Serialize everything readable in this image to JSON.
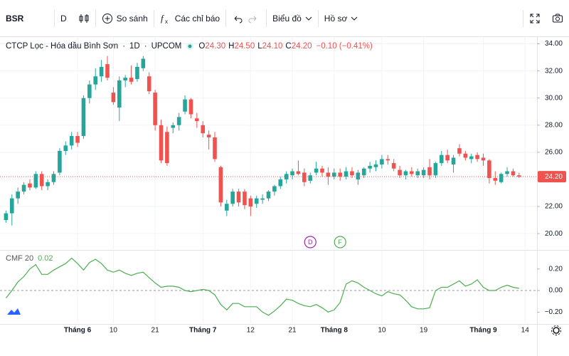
{
  "toolbar": {
    "symbol": "BSR",
    "interval": "D",
    "compare": "So sánh",
    "indicators": "Các chỉ báo",
    "chart": "Biểu đồ",
    "profile": "Hồ sơ"
  },
  "chart_data": [
    {
      "type": "candlestick",
      "title": "CTCP Lọc - Hóa dầu Bình Sơn",
      "interval": "1D",
      "exchange": "UPCOM",
      "legend_values": [
        {
          "key": "O",
          "value": "24.30"
        },
        {
          "key": "H",
          "value": "24.50"
        },
        {
          "key": "L",
          "value": "24.10"
        },
        {
          "key": "C",
          "value": "24.20"
        }
      ],
      "change": "−0.10 (−0.41%)",
      "series": [
        {
          "up_color": "#26a69a",
          "down_color": "#ef5350",
          "ohlc": [
            [
              21.0,
              21.7,
              20.8,
              21.5
            ],
            [
              21.5,
              22.9,
              20.6,
              22.6
            ],
            [
              22.6,
              23.4,
              22.2,
              23.1
            ],
            [
              23.1,
              23.8,
              22.9,
              23.6
            ],
            [
              23.7,
              24.0,
              23.2,
              23.4
            ],
            [
              23.4,
              24.6,
              23.3,
              24.4
            ],
            [
              24.4,
              24.6,
              23.2,
              23.5
            ],
            [
              23.5,
              24.0,
              23.2,
              23.8
            ],
            [
              23.8,
              24.6,
              23.6,
              24.4
            ],
            [
              24.5,
              26.3,
              24.3,
              26.1
            ],
            [
              26.1,
              26.8,
              25.8,
              26.5
            ],
            [
              26.5,
              27.5,
              26.2,
              27.2
            ],
            [
              27.2,
              27.5,
              26.4,
              26.7
            ],
            [
              27.2,
              30.2,
              27.0,
              30.0
            ],
            [
              30.0,
              31.3,
              29.6,
              31.0
            ],
            [
              31.0,
              32.2,
              30.6,
              31.6
            ],
            [
              31.6,
              32.8,
              31.2,
              32.3
            ],
            [
              32.5,
              33.1,
              31.3,
              31.5
            ],
            [
              30.4,
              30.8,
              29.5,
              29.7
            ],
            [
              29.3,
              31.6,
              28.3,
              31.3
            ],
            [
              31.3,
              31.7,
              30.8,
              31.5
            ],
            [
              31.5,
              32.4,
              31.0,
              31.2
            ],
            [
              31.4,
              32.6,
              31.2,
              32.3
            ],
            [
              32.2,
              33.1,
              32.0,
              32.9
            ],
            [
              31.6,
              31.9,
              30.3,
              30.5
            ],
            [
              30.4,
              30.6,
              27.6,
              28.0
            ],
            [
              28.0,
              28.4,
              25.2,
              25.4
            ],
            [
              27.5,
              27.9,
              25.0,
              25.2
            ],
            [
              27.8,
              28.2,
              27.4,
              28.0
            ],
            [
              28.0,
              28.9,
              27.6,
              28.6
            ],
            [
              29.0,
              30.2,
              28.8,
              29.9
            ],
            [
              29.9,
              30.0,
              28.5,
              28.8
            ],
            [
              28.5,
              28.9,
              27.8,
              28.3
            ],
            [
              28.0,
              28.3,
              27.1,
              27.4
            ],
            [
              27.3,
              27.6,
              26.2,
              27.1
            ],
            [
              27.1,
              27.5,
              25.3,
              25.5
            ],
            [
              24.9,
              25.0,
              22.0,
              22.3
            ],
            [
              21.7,
              22.5,
              21.3,
              22.2
            ],
            [
              22.2,
              23.3,
              22.0,
              23.1
            ],
            [
              23.1,
              23.3,
              22.0,
              22.3
            ],
            [
              23.1,
              23.3,
              21.8,
              22.1
            ],
            [
              22.6,
              22.8,
              21.3,
              22.0
            ],
            [
              22.2,
              22.8,
              21.9,
              22.6
            ],
            [
              22.5,
              22.9,
              22.2,
              22.6
            ],
            [
              22.6,
              23.2,
              22.4,
              23.1
            ],
            [
              23.1,
              23.6,
              22.8,
              23.5
            ],
            [
              23.5,
              24.2,
              23.3,
              24.0
            ],
            [
              24.0,
              24.6,
              23.7,
              24.4
            ],
            [
              24.3,
              24.8,
              24.0,
              24.6
            ],
            [
              24.6,
              25.4,
              24.3,
              24.4
            ],
            [
              24.5,
              24.8,
              23.5,
              23.8
            ],
            [
              23.9,
              24.5,
              23.7,
              24.3
            ],
            [
              24.5,
              25.3,
              24.3,
              24.8
            ],
            [
              24.8,
              25.0,
              24.2,
              24.5
            ],
            [
              24.5,
              24.9,
              23.6,
              24.2
            ],
            [
              24.2,
              24.8,
              24.0,
              24.5
            ],
            [
              24.5,
              24.8,
              23.9,
              24.2
            ],
            [
              24.2,
              24.9,
              24.0,
              24.6
            ],
            [
              24.6,
              24.9,
              24.1,
              24.3
            ],
            [
              24.0,
              24.7,
              23.6,
              24.5
            ],
            [
              24.3,
              24.9,
              24.1,
              24.8
            ],
            [
              24.8,
              25.3,
              24.5,
              25.0
            ],
            [
              24.9,
              25.4,
              24.6,
              25.1
            ],
            [
              25.1,
              25.8,
              24.8,
              25.5
            ],
            [
              25.5,
              25.8,
              25.1,
              25.4
            ],
            [
              25.2,
              25.5,
              24.6,
              24.8
            ],
            [
              24.7,
              25.0,
              24.1,
              24.3
            ],
            [
              24.3,
              24.7,
              24.0,
              24.6
            ],
            [
              24.6,
              24.9,
              24.2,
              24.4
            ],
            [
              24.3,
              24.8,
              24.1,
              24.6
            ],
            [
              24.3,
              24.9,
              24.1,
              24.7
            ],
            [
              24.9,
              25.5,
              24.0,
              24.3
            ],
            [
              24.3,
              25.3,
              24.1,
              25.2
            ],
            [
              25.2,
              26.1,
              25.0,
              25.8
            ],
            [
              25.8,
              26.2,
              25.2,
              25.4
            ],
            [
              25.1,
              25.8,
              24.5,
              25.6
            ],
            [
              26.3,
              26.6,
              25.7,
              25.9
            ],
            [
              25.9,
              26.1,
              25.4,
              25.6
            ],
            [
              25.5,
              25.9,
              25.2,
              25.7
            ],
            [
              25.8,
              26.0,
              25.3,
              25.5
            ],
            [
              25.6,
              25.9,
              25.0,
              25.4
            ],
            [
              25.4,
              25.5,
              23.7,
              24.1
            ],
            [
              24.1,
              24.6,
              23.6,
              23.9
            ],
            [
              23.8,
              24.5,
              23.7,
              24.4
            ],
            [
              24.4,
              24.9,
              24.2,
              24.6
            ],
            [
              24.6,
              24.8,
              24.2,
              24.3
            ],
            [
              24.3,
              24.5,
              24.1,
              24.2
            ]
          ]
        }
      ],
      "xlim": [
        -1,
        89
      ],
      "xticks": [
        {
          "value": 12,
          "label": "Tháng 6"
        },
        {
          "value": 18,
          "label": "10"
        },
        {
          "value": 25,
          "label": "21"
        },
        {
          "value": 33,
          "label": "Tháng 7"
        },
        {
          "value": 41,
          "label": "12"
        },
        {
          "value": 48,
          "label": "21"
        },
        {
          "value": 55,
          "label": "Tháng 8"
        },
        {
          "value": 63,
          "label": "10"
        },
        {
          "value": 70,
          "label": "19"
        },
        {
          "value": 80,
          "label": "Tháng 9"
        },
        {
          "value": 87,
          "label": "14"
        }
      ],
      "ylim": [
        18.8,
        34.5
      ],
      "yticks": [
        {
          "value": 20,
          "label": "20.00"
        },
        {
          "value": 22,
          "label": "22.00"
        },
        {
          "value": 24,
          "label": "24.00"
        },
        {
          "value": 26,
          "label": "26.00"
        },
        {
          "value": 28,
          "label": "28.00"
        },
        {
          "value": 30,
          "label": "30.00"
        },
        {
          "value": 32,
          "label": "32.00"
        },
        {
          "value": 34,
          "label": "34.00"
        }
      ],
      "last_price_label": "24.20",
      "events": [
        {
          "label": "D",
          "x": 51,
          "color": "#9c27b0"
        },
        {
          "label": "F",
          "x": 56,
          "color": "#4caf50"
        }
      ],
      "grid": true
    },
    {
      "type": "line",
      "series": [
        {
          "name": "CMF 20",
          "color": "#4caf50",
          "values": [
            -0.07,
            0.0,
            0.08,
            0.13,
            0.2,
            0.24,
            0.15,
            0.15,
            0.19,
            0.22,
            0.25,
            0.3,
            0.25,
            0.19,
            0.26,
            0.29,
            0.25,
            0.19,
            0.17,
            0.19,
            0.16,
            0.14,
            0.16,
            0.17,
            0.12,
            0.07,
            0.03,
            0.04,
            0.04,
            0.03,
            0.0,
            -0.01,
            0.0,
            0.01,
            0.0,
            -0.04,
            -0.13,
            -0.18,
            -0.12,
            -0.12,
            -0.15,
            -0.15,
            -0.15,
            -0.2,
            -0.23,
            -0.19,
            -0.14,
            -0.08,
            -0.09,
            -0.12,
            -0.14,
            -0.15,
            -0.13,
            -0.16,
            -0.2,
            -0.18,
            -0.11,
            0.06,
            0.09,
            0.07,
            0.03,
            0.0,
            -0.03,
            -0.05,
            -0.01,
            -0.03,
            -0.04,
            -0.09,
            -0.15,
            -0.17,
            -0.17,
            -0.16,
            0.0,
            0.03,
            0.03,
            0.06,
            0.09,
            0.04,
            0.06,
            0.1,
            0.03,
            0.0,
            0.0,
            0.03,
            0.05,
            0.03,
            0.02
          ]
        }
      ],
      "xlim": [
        -1,
        89
      ],
      "ylim": [
        -0.31,
        0.37
      ],
      "yticks": [
        {
          "value": 0.2,
          "label": "0.20"
        },
        {
          "value": 0,
          "label": "0.00"
        },
        {
          "value": -0.2,
          "label": "−0.20"
        }
      ],
      "zero_line": true
    }
  ]
}
